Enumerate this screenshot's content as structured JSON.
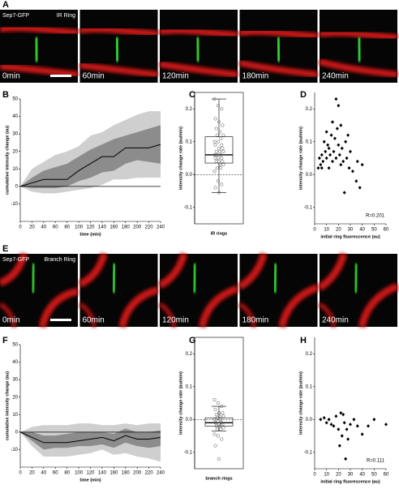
{
  "images": [
    {
      "panel_label": "A",
      "protein": "Sep7-GFP",
      "ring": "IR Ring",
      "times": [
        "0min",
        "60min",
        "120min",
        "180min",
        "240min"
      ]
    },
    {
      "panel_label": "E",
      "protein": "Sep7-GFP",
      "ring": "Branch Ring",
      "times": [
        "0min",
        "60min",
        "120min",
        "180min",
        "240min"
      ]
    }
  ],
  "chart_data": [
    {
      "type": "line",
      "panel_label": "B",
      "xlabel": "time (min)",
      "ylabel": "cumulative intensity change (au)",
      "x": [
        0,
        20,
        40,
        60,
        80,
        100,
        120,
        140,
        160,
        180,
        200,
        220,
        240
      ],
      "mean": [
        0,
        2,
        4,
        4,
        4,
        9,
        13,
        17,
        17,
        22,
        22,
        22,
        24
      ],
      "inner_band": {
        "lower": [
          0,
          -1,
          -1,
          -1,
          0,
          3,
          5,
          8,
          9,
          13,
          15,
          14,
          13
        ],
        "upper": [
          0,
          5,
          9,
          11,
          13,
          17,
          21,
          24,
          27,
          29,
          31,
          33,
          35
        ]
      },
      "outer_band": {
        "lower": [
          0,
          -3,
          -4,
          -4,
          -3,
          -2,
          -1,
          1,
          4,
          4,
          5,
          5,
          5
        ],
        "upper": [
          0,
          10,
          14,
          18,
          20,
          23,
          29,
          31,
          35,
          38,
          41,
          43,
          43
        ]
      },
      "colors": {
        "mean": "#000000",
        "inner": "#8c8c8c",
        "outer": "#cfcfcf"
      },
      "xlim": [
        0,
        240
      ],
      "ylim": [
        -20,
        50
      ],
      "xticks": [
        0,
        20,
        40,
        60,
        80,
        100,
        120,
        140,
        160,
        180,
        200,
        220,
        240
      ],
      "yticks": [
        -10,
        0,
        10,
        20,
        30,
        40,
        50
      ]
    },
    {
      "type": "box",
      "panel_label": "C",
      "xlabel": "IR rings",
      "ylabel": "intensity change rate (au/min)",
      "stats": {
        "whisker_low": -0.055,
        "q1": 0.035,
        "median": 0.06,
        "q3": 0.115,
        "whisker_high": 0.23
      },
      "points": [
        0.23,
        0.21,
        0.2,
        0.17,
        0.16,
        0.15,
        0.14,
        0.13,
        0.12,
        0.12,
        0.11,
        0.1,
        0.1,
        0.09,
        0.09,
        0.08,
        0.08,
        0.07,
        0.07,
        0.07,
        0.06,
        0.06,
        0.06,
        0.05,
        0.05,
        0.05,
        0.04,
        0.04,
        0.04,
        0.03,
        0.03,
        0.02,
        0.02,
        0.01,
        -0.02,
        -0.03,
        -0.04,
        -0.055
      ],
      "reference_line": 0,
      "ylim": [
        -0.15,
        0.25
      ],
      "yticks": [
        -0.1,
        {
          "value": 0,
          "label": "0.0"
        },
        0.1,
        0.2
      ]
    },
    {
      "type": "scatter",
      "panel_label": "D",
      "xlabel": "initial ring fluorescence (au)",
      "ylabel": "intensity change rate (au/min)",
      "annotation": "R=0.201",
      "x": [
        3,
        4,
        5,
        6,
        7,
        8,
        9,
        10,
        10,
        11,
        12,
        13,
        14,
        15,
        15,
        16,
        17,
        18,
        18,
        19,
        20,
        20,
        21,
        22,
        23,
        24,
        25,
        26,
        27,
        28,
        29,
        30,
        32,
        35,
        36,
        38,
        40,
        6,
        12,
        22
      ],
      "y": [
        0.02,
        0.05,
        0.03,
        0.06,
        0.04,
        0.1,
        0.07,
        0.05,
        0.13,
        0.09,
        0.08,
        0.06,
        0.12,
        0.04,
        0.16,
        0.07,
        0.11,
        0.23,
        0.05,
        0.14,
        0.09,
        0.21,
        0.06,
        0.15,
        0.08,
        0.04,
        -0.055,
        0.1,
        0.05,
        0.12,
        0.02,
        0.07,
        0.01,
        -0.02,
        0.04,
        -0.04,
        0.03,
        0.02,
        0.02,
        0.03
      ],
      "xlim": [
        0,
        60
      ],
      "ylim": [
        -0.15,
        0.25
      ],
      "xticks": [
        0,
        10,
        20,
        30,
        40,
        50,
        60
      ],
      "yticks": [
        -0.1,
        {
          "value": 0,
          "label": "0.0"
        },
        0.1,
        0.2
      ]
    },
    {
      "type": "line",
      "panel_label": "F",
      "xlabel": "time (min)",
      "ylabel": "cumulative intensity change (au)",
      "x": [
        0,
        20,
        40,
        60,
        80,
        100,
        120,
        140,
        160,
        180,
        200,
        220,
        240
      ],
      "mean": [
        0,
        -3,
        -6,
        -6,
        -6,
        -5,
        -4,
        -3,
        -5,
        -2,
        -4,
        -4,
        -3
      ],
      "inner_band": {
        "lower": [
          0,
          -5,
          -10,
          -9,
          -9,
          -8,
          -8,
          -7,
          -9,
          -6,
          -8,
          -9,
          -8
        ],
        "upper": [
          0,
          0,
          -2,
          -2,
          -1,
          0,
          0,
          0,
          -1,
          2,
          0,
          0,
          1
        ]
      },
      "outer_band": {
        "lower": [
          0,
          -8,
          -14,
          -14,
          -14,
          -13,
          -12,
          -10,
          -13,
          -12,
          -14,
          -15,
          -17
        ],
        "upper": [
          0,
          3,
          4,
          4,
          4,
          5,
          5,
          4,
          4,
          5,
          4,
          5,
          5
        ]
      },
      "colors": {
        "mean": "#000000",
        "inner": "#8c8c8c",
        "outer": "#cfcfcf"
      },
      "xlim": [
        0,
        240
      ],
      "ylim": [
        -20,
        50
      ],
      "xticks": [
        0,
        20,
        40,
        60,
        80,
        100,
        120,
        140,
        160,
        180,
        200,
        220,
        240
      ],
      "yticks": [
        -10,
        0,
        10,
        20,
        30,
        40,
        50
      ]
    },
    {
      "type": "box",
      "panel_label": "G",
      "xlabel": "branch rings",
      "ylabel": "intensity change rate (au/min)",
      "stats": {
        "whisker_low": -0.035,
        "q1": -0.02,
        "median": -0.01,
        "q3": 0.005,
        "whisker_high": 0.04
      },
      "points": [
        0.06,
        0.05,
        0.04,
        0.03,
        0.02,
        0.02,
        0.015,
        0.01,
        0.01,
        0.005,
        0,
        0,
        -0.005,
        -0.01,
        -0.01,
        -0.015,
        -0.015,
        -0.02,
        -0.02,
        -0.025,
        -0.03,
        -0.03,
        -0.045,
        -0.05,
        -0.06,
        -0.08,
        -0.12
      ],
      "reference_line": 0,
      "ylim": [
        -0.15,
        0.25
      ],
      "yticks": [
        -0.1,
        {
          "value": 0,
          "label": "0.0"
        },
        0.1,
        0.2
      ]
    },
    {
      "type": "scatter",
      "panel_label": "H",
      "xlabel": "initial ring fluorescence (au)",
      "ylabel": "intensity change rate (au/min)",
      "annotation": "R=0.111",
      "x": [
        5,
        8,
        10,
        12,
        14,
        16,
        18,
        20,
        21,
        22,
        23,
        24,
        25,
        26,
        27,
        28,
        30,
        33,
        36,
        40,
        45,
        50,
        60
      ],
      "y": [
        0,
        0.005,
        -0.01,
        0,
        -0.015,
        -0.02,
        0.01,
        -0.03,
        -0.08,
        0.02,
        -0.05,
        0.015,
        -0.01,
        -0.12,
        -0.03,
        -0.06,
        -0.015,
        0,
        -0.02,
        -0.045,
        -0.02,
        0,
        -0.015
      ],
      "xlim": [
        0,
        60
      ],
      "ylim": [
        -0.15,
        0.25
      ],
      "xticks": [
        0,
        10,
        20,
        30,
        40,
        50,
        60
      ],
      "yticks": [
        -0.1,
        {
          "value": 0,
          "label": "0.0"
        },
        0.1,
        0.2
      ]
    }
  ]
}
